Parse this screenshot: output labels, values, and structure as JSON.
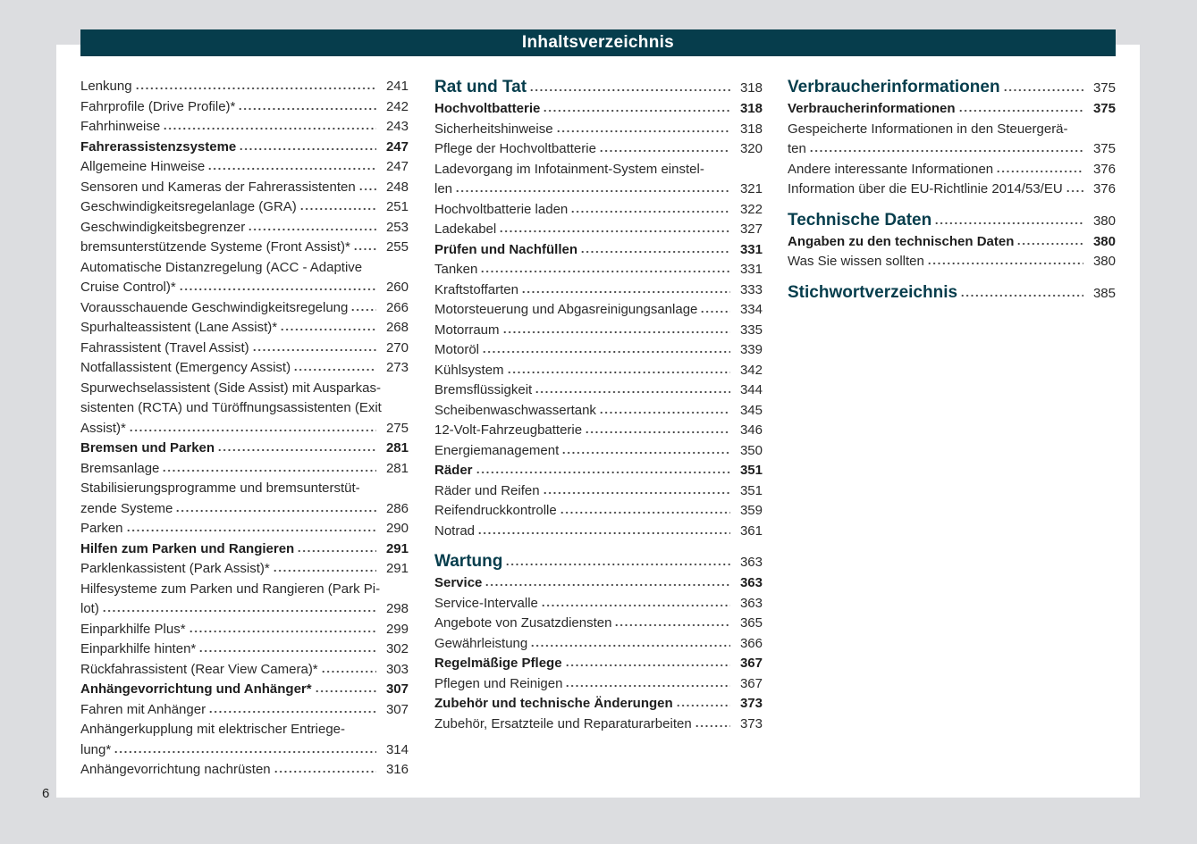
{
  "header": {
    "title": "Inhaltsverzeichnis"
  },
  "page_number": "6",
  "colors": {
    "header_bg": "#063d4c",
    "chapter_text": "#063d4c",
    "background": "#dcdde0"
  },
  "columns": [
    [
      {
        "type": "n",
        "lines": [
          "Lenkung"
        ],
        "page": "241"
      },
      {
        "type": "n",
        "lines": [
          "Fahrprofile (Drive Profile)*"
        ],
        "page": "242"
      },
      {
        "type": "n",
        "lines": [
          "Fahrhinweise"
        ],
        "page": "243"
      },
      {
        "type": "h2",
        "lines": [
          "Fahrerassistenzsysteme"
        ],
        "page": "247"
      },
      {
        "type": "n",
        "lines": [
          "Allgemeine Hinweise"
        ],
        "page": "247"
      },
      {
        "type": "n",
        "lines": [
          "Sensoren und Kameras der Fahrerassistenten"
        ],
        "page": "248"
      },
      {
        "type": "n",
        "lines": [
          "Geschwindigkeitsregelanlage (GRA)"
        ],
        "page": "251"
      },
      {
        "type": "n",
        "lines": [
          "Geschwindigkeitsbegrenzer"
        ],
        "page": "253"
      },
      {
        "type": "n",
        "lines": [
          "bremsunterstützende Systeme (Front Assist)*"
        ],
        "page": "255"
      },
      {
        "type": "n",
        "lines": [
          "Automatische Distanzregelung (ACC - Adaptive",
          "Cruise Control)*"
        ],
        "page": "260"
      },
      {
        "type": "n",
        "lines": [
          "Vorausschauende Geschwindigkeitsregelung"
        ],
        "page": "266"
      },
      {
        "type": "n",
        "lines": [
          "Spurhalteassistent (Lane Assist)*"
        ],
        "page": "268"
      },
      {
        "type": "n",
        "lines": [
          "Fahrassistent (Travel Assist)"
        ],
        "page": "270"
      },
      {
        "type": "n",
        "lines": [
          "Notfallassistent (Emergency Assist)"
        ],
        "page": "273"
      },
      {
        "type": "n",
        "lines": [
          "Spurwechselassistent (Side Assist) mit Ausparkas-",
          "sistenten (RCTA) und Türöffnungsassistenten (Exit",
          "Assist)*"
        ],
        "page": "275"
      },
      {
        "type": "h2",
        "lines": [
          "Bremsen und Parken"
        ],
        "page": "281"
      },
      {
        "type": "n",
        "lines": [
          "Bremsanlage"
        ],
        "page": "281"
      },
      {
        "type": "n",
        "lines": [
          "Stabilisierungsprogramme und bremsunterstüt-",
          "zende Systeme"
        ],
        "page": "286"
      },
      {
        "type": "n",
        "lines": [
          "Parken"
        ],
        "page": "290"
      },
      {
        "type": "h2",
        "lines": [
          "Hilfen zum Parken und Rangieren"
        ],
        "page": "291"
      },
      {
        "type": "n",
        "lines": [
          "Parklenkassistent (Park Assist)*"
        ],
        "page": "291"
      },
      {
        "type": "n",
        "lines": [
          "Hilfesysteme zum Parken und Rangieren (Park Pi-",
          "lot)"
        ],
        "page": "298"
      },
      {
        "type": "n",
        "lines": [
          "Einparkhilfe Plus*"
        ],
        "page": "299"
      },
      {
        "type": "n",
        "lines": [
          "Einparkhilfe hinten*"
        ],
        "page": "302"
      },
      {
        "type": "n",
        "lines": [
          "Rückfahrassistent (Rear View Camera)*"
        ],
        "page": "303"
      },
      {
        "type": "h2",
        "lines": [
          "Anhängevorrichtung und Anhänger*"
        ],
        "page": "307"
      },
      {
        "type": "n",
        "lines": [
          "Fahren mit Anhänger"
        ],
        "page": "307"
      },
      {
        "type": "n",
        "lines": [
          "Anhängerkupplung mit elektrischer Entriege-",
          "lung*"
        ],
        "page": "314"
      },
      {
        "type": "n",
        "lines": [
          "Anhängevorrichtung nachrüsten"
        ],
        "page": "316"
      }
    ],
    [
      {
        "type": "h1",
        "lines": [
          "Rat und Tat"
        ],
        "page": "318"
      },
      {
        "type": "h2",
        "lines": [
          "Hochvoltbatterie"
        ],
        "page": "318"
      },
      {
        "type": "n",
        "lines": [
          "Sicherheitshinweise"
        ],
        "page": "318"
      },
      {
        "type": "n",
        "lines": [
          "Pflege der Hochvoltbatterie"
        ],
        "page": "320"
      },
      {
        "type": "n",
        "lines": [
          "Ladevorgang im Infotainment-System einstel-",
          "len"
        ],
        "page": "321"
      },
      {
        "type": "n",
        "lines": [
          "Hochvoltbatterie laden"
        ],
        "page": "322"
      },
      {
        "type": "n",
        "lines": [
          "Ladekabel"
        ],
        "page": "327"
      },
      {
        "type": "h2",
        "lines": [
          "Prüfen und Nachfüllen"
        ],
        "page": "331"
      },
      {
        "type": "n",
        "lines": [
          "Tanken"
        ],
        "page": "331"
      },
      {
        "type": "n",
        "lines": [
          "Kraftstoffarten"
        ],
        "page": "333"
      },
      {
        "type": "n",
        "lines": [
          "Motorsteuerung und Abgasreinigungsanlage"
        ],
        "page": "334"
      },
      {
        "type": "n",
        "lines": [
          "Motorraum"
        ],
        "page": "335"
      },
      {
        "type": "n",
        "lines": [
          "Motoröl"
        ],
        "page": "339"
      },
      {
        "type": "n",
        "lines": [
          "Kühlsystem"
        ],
        "page": "342"
      },
      {
        "type": "n",
        "lines": [
          "Bremsflüssigkeit"
        ],
        "page": "344"
      },
      {
        "type": "n",
        "lines": [
          "Scheibenwaschwassertank"
        ],
        "page": "345"
      },
      {
        "type": "n",
        "lines": [
          "12-Volt-Fahrzeugbatterie"
        ],
        "page": "346"
      },
      {
        "type": "n",
        "lines": [
          "Energiemanagement"
        ],
        "page": "350"
      },
      {
        "type": "h2",
        "lines": [
          "Räder"
        ],
        "page": "351"
      },
      {
        "type": "n",
        "lines": [
          "Räder und Reifen"
        ],
        "page": "351"
      },
      {
        "type": "n",
        "lines": [
          "Reifendruckkontrolle"
        ],
        "page": "359"
      },
      {
        "type": "n",
        "lines": [
          "Notrad"
        ],
        "page": "361"
      },
      {
        "type": "h1",
        "lines": [
          "Wartung"
        ],
        "page": "363"
      },
      {
        "type": "h2",
        "lines": [
          "Service"
        ],
        "page": "363"
      },
      {
        "type": "n",
        "lines": [
          "Service-Intervalle"
        ],
        "page": "363"
      },
      {
        "type": "n",
        "lines": [
          "Angebote von Zusatzdiensten"
        ],
        "page": "365"
      },
      {
        "type": "n",
        "lines": [
          "Gewährleistung"
        ],
        "page": "366"
      },
      {
        "type": "h2",
        "lines": [
          "Regelmäßige Pflege"
        ],
        "page": "367"
      },
      {
        "type": "n",
        "lines": [
          "Pflegen und Reinigen"
        ],
        "page": "367"
      },
      {
        "type": "h2",
        "lines": [
          "Zubehör und technische Änderungen"
        ],
        "page": "373"
      },
      {
        "type": "n",
        "lines": [
          "Zubehör, Ersatzteile und Reparaturarbeiten"
        ],
        "page": "373"
      }
    ],
    [
      {
        "type": "h1",
        "lines": [
          "Verbraucherinformationen"
        ],
        "page": "375"
      },
      {
        "type": "h2",
        "lines": [
          "Verbraucherinformationen"
        ],
        "page": "375"
      },
      {
        "type": "n",
        "lines": [
          "Gespeicherte Informationen in den Steuergerä-",
          "ten"
        ],
        "page": "375"
      },
      {
        "type": "n",
        "lines": [
          "Andere interessante Informationen"
        ],
        "page": "376"
      },
      {
        "type": "n",
        "lines": [
          "Information über die EU-Richtlinie 2014/53/EU"
        ],
        "page": "376"
      },
      {
        "type": "h1",
        "lines": [
          "Technische Daten"
        ],
        "page": "380"
      },
      {
        "type": "h2",
        "lines": [
          "Angaben zu den technischen Daten"
        ],
        "page": "380"
      },
      {
        "type": "n",
        "lines": [
          "Was Sie wissen sollten"
        ],
        "page": "380"
      },
      {
        "type": "h1",
        "lines": [
          "Stichwortverzeichnis"
        ],
        "page": "385"
      }
    ]
  ]
}
